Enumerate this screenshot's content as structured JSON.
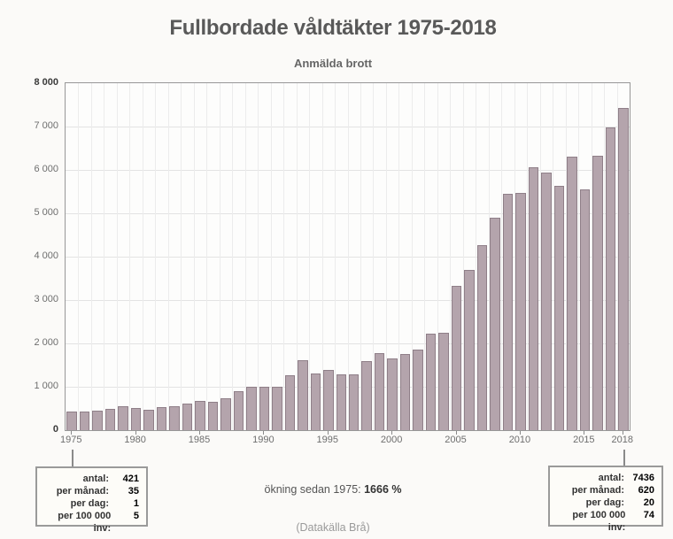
{
  "title": "Fullbordade våldtäkter 1975-2018",
  "chart_data": {
    "type": "bar",
    "title": "Anmälda brott",
    "xlabel": "",
    "ylabel": "",
    "ylim": [
      0,
      8000
    ],
    "ytick_step": 1000,
    "ytick_labels": [
      "0",
      "1 000",
      "2 000",
      "3 000",
      "4 000",
      "5 000",
      "6 000",
      "7 000",
      "8 000"
    ],
    "xtick_labels": [
      {
        "label": "1975",
        "year": 1975
      },
      {
        "label": "1980",
        "year": 1980
      },
      {
        "label": "1985",
        "year": 1985
      },
      {
        "label": "1990",
        "year": 1990
      },
      {
        "label": "1995",
        "year": 1995
      },
      {
        "label": "2000",
        "year": 2000
      },
      {
        "label": "2005",
        "year": 2005
      },
      {
        "label": "2010",
        "year": 2010
      },
      {
        "label": "2015",
        "year": 2015
      },
      {
        "label": "2018",
        "year": 2018
      }
    ],
    "grid": true,
    "legend_position": "none",
    "bar_color": "#b4a4ac",
    "bar_border_color": "#8f7f88",
    "years": [
      1975,
      1976,
      1977,
      1978,
      1979,
      1980,
      1981,
      1982,
      1983,
      1984,
      1985,
      1986,
      1987,
      1988,
      1989,
      1990,
      1991,
      1992,
      1993,
      1994,
      1995,
      1996,
      1997,
      1998,
      1999,
      2000,
      2001,
      2002,
      2003,
      2004,
      2005,
      2006,
      2007,
      2008,
      2009,
      2010,
      2011,
      2012,
      2013,
      2014,
      2015,
      2016,
      2017,
      2018
    ],
    "values": [
      421,
      420,
      450,
      500,
      545,
      515,
      470,
      540,
      555,
      620,
      670,
      660,
      735,
      890,
      1010,
      1000,
      1005,
      1265,
      1620,
      1310,
      1380,
      1280,
      1295,
      1585,
      1770,
      1660,
      1765,
      1850,
      2220,
      2255,
      3330,
      3690,
      4260,
      4895,
      5450,
      5460,
      6060,
      5945,
      5630,
      6300,
      5550,
      6325,
      6975,
      7436
    ]
  },
  "annotations": {
    "left_box": {
      "rows": [
        {
          "label": "antal:",
          "value": "421"
        },
        {
          "label": "per månad:",
          "value": "35"
        },
        {
          "label": "per dag:",
          "value": "1"
        },
        {
          "label": "per 100 000 inv:",
          "value": "5"
        }
      ]
    },
    "right_box": {
      "rows": [
        {
          "label": "antal:",
          "value": "7436"
        },
        {
          "label": "per månad:",
          "value": "620"
        },
        {
          "label": "per dag:",
          "value": "20"
        },
        {
          "label": "per 100 000 inv:",
          "value": "74"
        }
      ]
    },
    "increase_label": "ökning sedan 1975: ",
    "increase_value": "1666 %",
    "source": "(Datakälla Brå)"
  }
}
